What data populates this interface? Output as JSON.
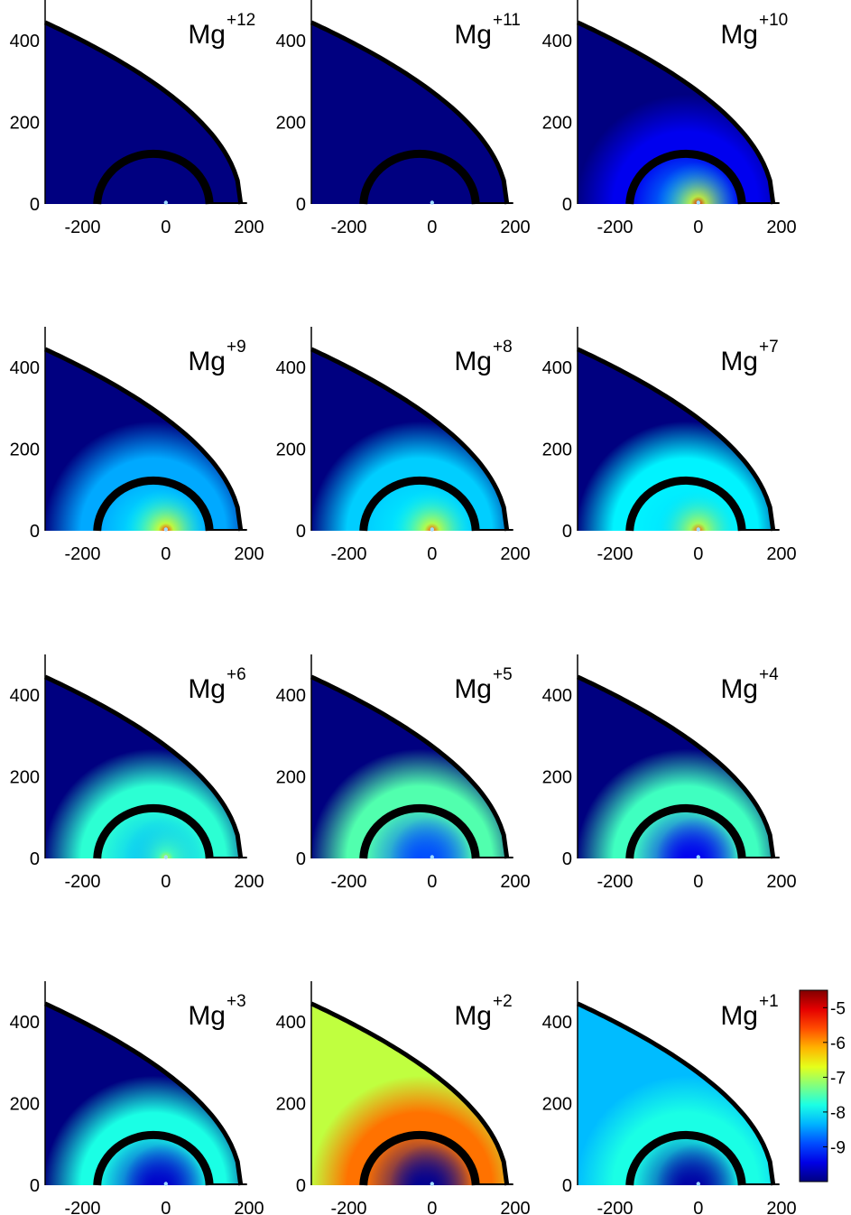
{
  "chart_data": {
    "type": "heatmap",
    "layout": {
      "rows": 4,
      "cols": 3
    },
    "xlim": [
      -290,
      200
    ],
    "ylim": [
      0,
      500
    ],
    "xticks": [
      -200,
      0,
      200
    ],
    "yticks": [
      0,
      200,
      400
    ],
    "xtick_labels": [
      "-200",
      "0",
      "200"
    ],
    "ytick_labels": [
      "0",
      "200",
      "400"
    ],
    "colorbar": {
      "range": [
        -10,
        -4.5
      ],
      "ticks": [
        -5,
        -6,
        -7,
        -8,
        -9
      ],
      "tick_labels": [
        "-5",
        "-6",
        "-7",
        "-8",
        "-9"
      ],
      "colormap": "jet"
    },
    "shapes": {
      "outer_boundary_apex_x": 180,
      "outer_boundary_y_at_left_edge": 445,
      "inner_shell_center_x": -30,
      "inner_shell_radius": 135,
      "source_x": 0
    },
    "panels": [
      {
        "ion": "Mg",
        "charge": "+12",
        "bg": -10,
        "band": -10,
        "inner": -10,
        "center": -10
      },
      {
        "ion": "Mg",
        "charge": "+11",
        "bg": -10,
        "band": -10,
        "inner": -10,
        "center": -10
      },
      {
        "ion": "Mg",
        "charge": "+10",
        "bg": -10,
        "band": -9.4,
        "inner": -8.4,
        "center": -5.0
      },
      {
        "ion": "Mg",
        "charge": "+9",
        "bg": -10,
        "band": -8.4,
        "inner": -8.0,
        "center": -5.3
      },
      {
        "ion": "Mg",
        "charge": "+8",
        "bg": -10,
        "band": -8.2,
        "inner": -8.0,
        "center": -5.5
      },
      {
        "ion": "Mg",
        "charge": "+7",
        "bg": -10,
        "band": -8.0,
        "inner": -8.1,
        "center": -5.6
      },
      {
        "ion": "Mg",
        "charge": "+6",
        "bg": -10,
        "band": -7.7,
        "inner": -8.3,
        "center": -6.8
      },
      {
        "ion": "Mg",
        "charge": "+5",
        "bg": -10,
        "band": -7.5,
        "inner": -8.9,
        "center": -8.9
      },
      {
        "ion": "Mg",
        "charge": "+4",
        "bg": -10,
        "band": -7.6,
        "inner": -9.4,
        "center": -9.4
      },
      {
        "ion": "Mg",
        "charge": "+3",
        "bg": -10,
        "band": -7.8,
        "inner": -9.6,
        "center": -9.6
      },
      {
        "ion": "Mg",
        "charge": "+2",
        "bg": -6.9,
        "band": -5.8,
        "inner": -9.9,
        "center": -9.9
      },
      {
        "ion": "Mg",
        "charge": "+1",
        "bg": -8.3,
        "band": -7.8,
        "inner": -9.8,
        "center": -9.8
      }
    ]
  }
}
